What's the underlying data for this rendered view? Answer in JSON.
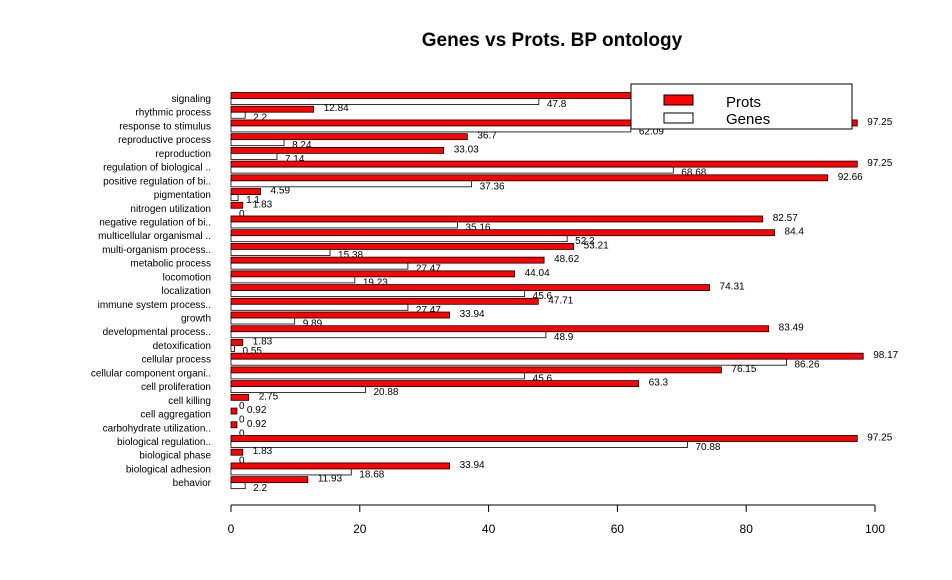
{
  "chart_data": {
    "type": "bar",
    "orientation": "horizontal",
    "title": "Genes vs Prots. BP ontology",
    "xlabel": "",
    "ylabel": "",
    "xlim": [
      0,
      100
    ],
    "x_ticks": [
      0,
      20,
      40,
      60,
      80,
      100
    ],
    "categories": [
      "signaling",
      "rhythmic process",
      "response to stimulus",
      "reproductive process",
      "reproduction",
      "regulation of biological ..",
      "positive regulation of bi..",
      "pigmentation",
      "nitrogen utilization",
      "negative regulation of bi..",
      "multicellular organismal ..",
      "multi-organism process..",
      "metabolic process",
      "locomotion",
      "localization",
      "immune system process..",
      "growth",
      "developmental process..",
      "detoxification",
      "cellular process",
      "cellular component organi..",
      "cell proliferation",
      "cell killing",
      "cell aggregation",
      "carbohydrate utilization..",
      "biological regulation..",
      "biological phase",
      "biological adhesion",
      "behavior"
    ],
    "series": [
      {
        "name": "Prots",
        "color": "#ff0000",
        "values": [
          88.07,
          12.84,
          97.25,
          36.7,
          33.03,
          97.25,
          92.66,
          4.59,
          1.83,
          82.57,
          84.4,
          53.21,
          48.62,
          44.04,
          74.31,
          47.71,
          33.94,
          83.49,
          1.83,
          98.17,
          76.15,
          63.3,
          2.75,
          0.92,
          0.92,
          97.25,
          1.83,
          33.94,
          11.93
        ],
        "labels": [
          "88.07",
          "12.84",
          "97.25",
          "36.7",
          "33.03",
          "97.25",
          "92.66",
          "4.59",
          "1.83",
          "82.57",
          "84.4",
          "53.21",
          "48.62",
          "44.04",
          "74.31",
          "47.71",
          "33.94",
          "83.49",
          "1.83",
          "98.17",
          "76.15",
          "63.3",
          "2.75",
          "0.92",
          "0.92",
          "97.25",
          "1.83",
          "33.94",
          "11.93"
        ]
      },
      {
        "name": "Genes",
        "color": "#ffffff",
        "values": [
          47.8,
          2.2,
          62.09,
          8.24,
          7.14,
          68.68,
          37.36,
          1.1,
          0,
          35.16,
          52.2,
          15.38,
          27.47,
          19.23,
          45.6,
          27.47,
          9.89,
          48.9,
          0.55,
          86.26,
          45.6,
          20.88,
          0,
          0,
          0,
          70.88,
          0,
          18.68,
          2.2
        ],
        "labels": [
          "47.8",
          "2.2",
          "62.09",
          "8.24",
          "7.14",
          "68.68",
          "37.36",
          "1.1",
          "0",
          "35.16",
          "52.2",
          "15.38",
          "27.47",
          "19.23",
          "45.6",
          "27.47",
          "9.89",
          "48.9",
          "0.55",
          "86.26",
          "45.6",
          "20.88",
          "0",
          "0",
          "0",
          "70.88",
          "0",
          "18.68",
          "2.2"
        ]
      }
    ],
    "legend": {
      "placement": "top-right",
      "entries": [
        "Prots",
        "Genes"
      ]
    },
    "grid": false
  }
}
